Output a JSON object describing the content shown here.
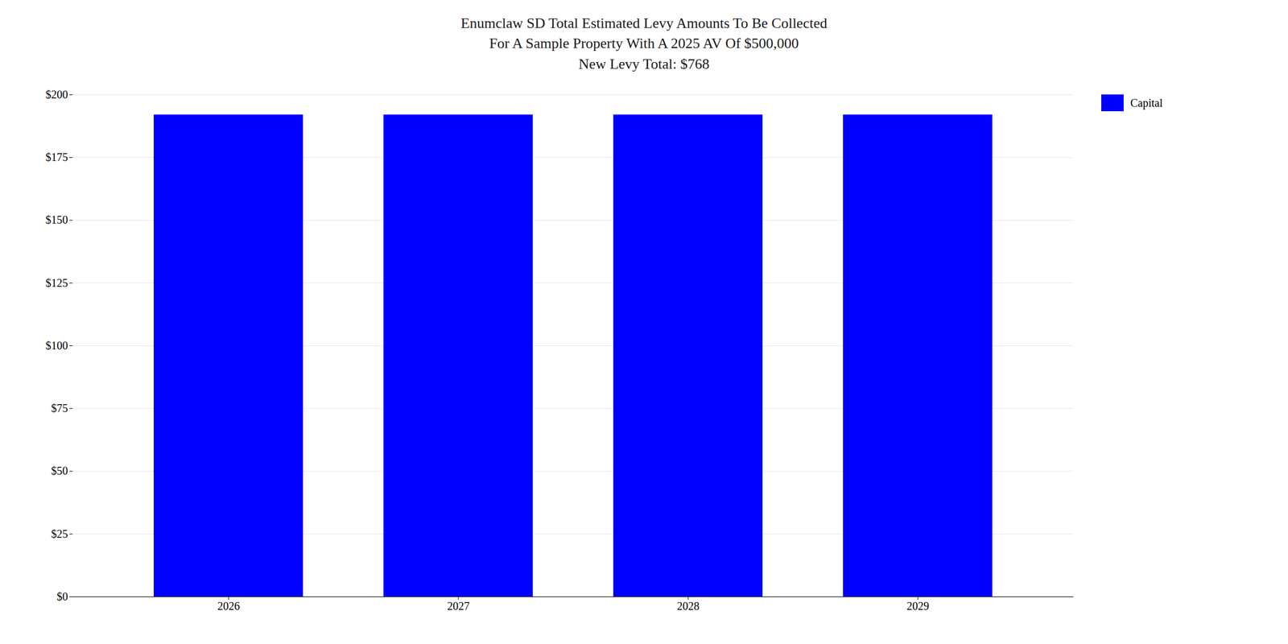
{
  "chart_data": {
    "type": "bar",
    "title": "Enumclaw SD Total Estimated Levy Amounts To Be Collected\nFor A Sample Property With A 2025 AV Of $500,000\nNew Levy Total: $768",
    "categories": [
      "2026",
      "2027",
      "2028",
      "2029"
    ],
    "series": [
      {
        "name": "Capital",
        "color": "#0000ff",
        "values": [
          192,
          192,
          192,
          192
        ]
      }
    ],
    "ylim": [
      0,
      200
    ],
    "yticks": [
      {
        "value": 0,
        "label": "$0"
      },
      {
        "value": 25,
        "label": "$25"
      },
      {
        "value": 50,
        "label": "$50"
      },
      {
        "value": 75,
        "label": "$75"
      },
      {
        "value": 100,
        "label": "$100"
      },
      {
        "value": 125,
        "label": "$125"
      },
      {
        "value": 150,
        "label": "$150"
      },
      {
        "value": 175,
        "label": "$175"
      },
      {
        "value": 200,
        "label": "$200"
      }
    ],
    "grid": true,
    "legend": "right"
  }
}
